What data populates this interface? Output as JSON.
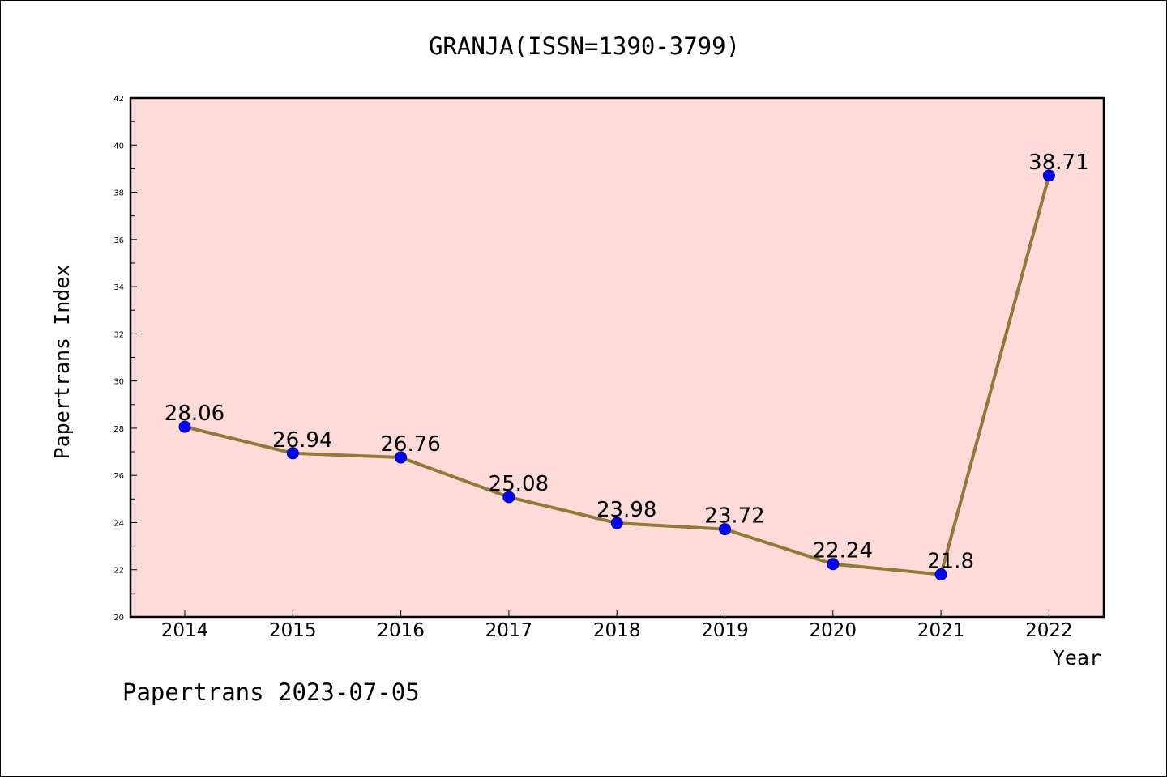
{
  "chart_data": {
    "type": "line",
    "title": "GRANJA(ISSN=1390-3799)",
    "xlabel": "Year",
    "ylabel": "Papertrans Index",
    "categories": [
      "2014",
      "2015",
      "2016",
      "2017",
      "2018",
      "2019",
      "2020",
      "2021",
      "2022"
    ],
    "series": [
      {
        "values": [
          28.06,
          26.94,
          26.76,
          25.08,
          23.98,
          23.72,
          22.24,
          21.8,
          38.71
        ]
      }
    ],
    "data_labels": [
      "28.06",
      "26.94",
      "26.76",
      "25.08",
      "23.98",
      "23.72",
      "22.24",
      "21.8",
      "38.71"
    ],
    "ylim": [
      20,
      42
    ],
    "yticks": [
      "20",
      "22",
      "24",
      "26",
      "28",
      "30",
      "32",
      "34",
      "36",
      "38",
      "40",
      "42"
    ],
    "grid": false,
    "legend": "none",
    "colors": {
      "plot_background": "#fddbd9",
      "line": "#8f7a3a",
      "marker": "#0000ff"
    }
  },
  "footer": "Papertrans 2023-07-05"
}
